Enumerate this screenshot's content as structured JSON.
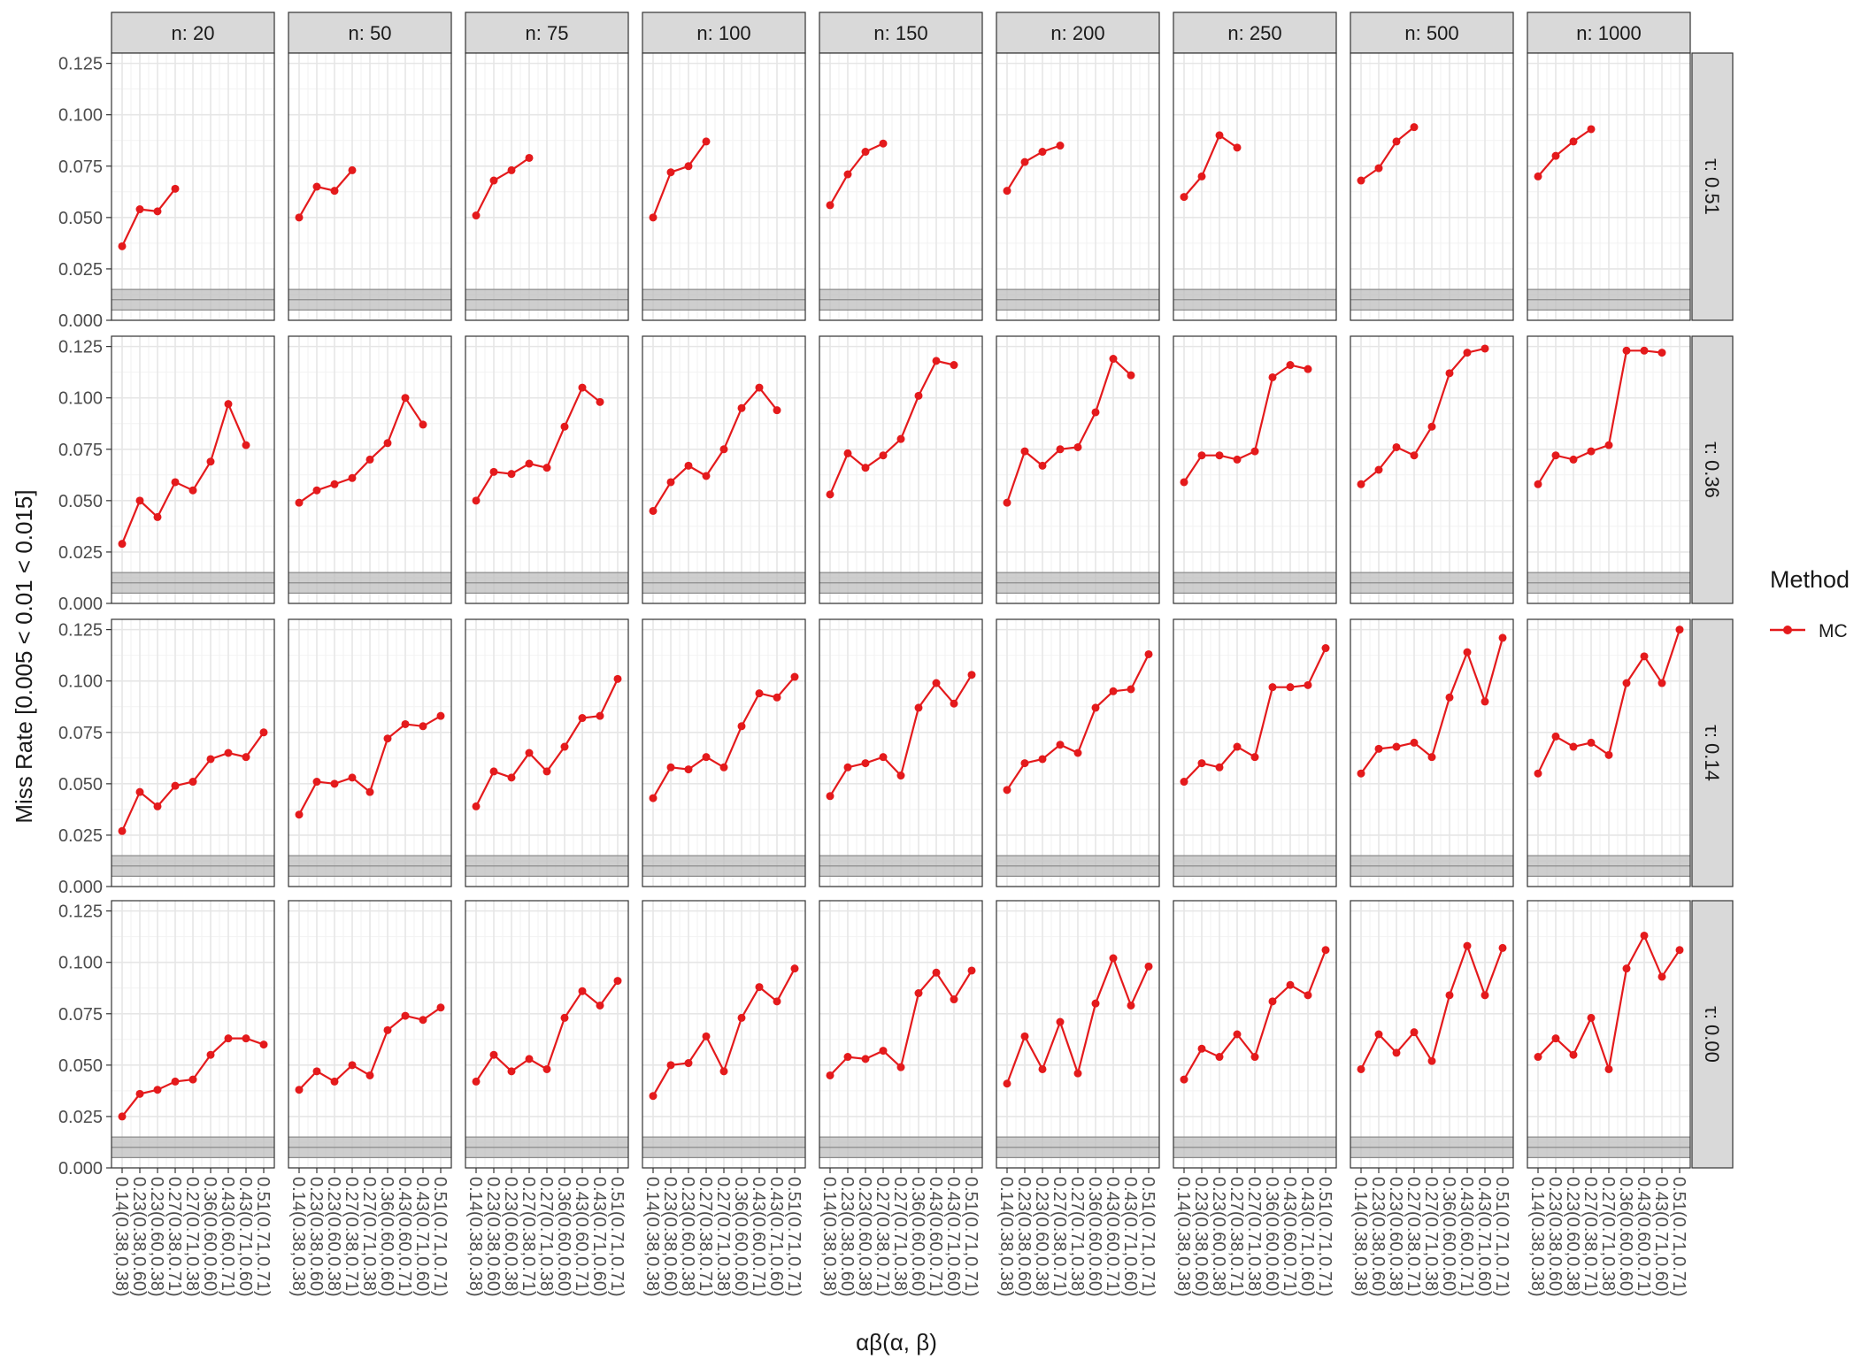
{
  "chart_data": {
    "type": "line",
    "facet_layout": {
      "cols_var_prefix": "n: ",
      "rows_var_prefix": "τ: "
    },
    "cols": [
      "n: 20",
      "n: 50",
      "n: 75",
      "n: 100",
      "n: 150",
      "n: 200",
      "n: 250",
      "n: 500",
      "n: 1000"
    ],
    "rows": [
      "τ: 0.51",
      "τ: 0.36",
      "τ: 0.14",
      "τ: 0.00"
    ],
    "x_categories": [
      "0.14(0.38,0.38)",
      "0.23(0.38,0.60)",
      "0.23(0.60,0.38)",
      "0.27(0.38,0.71)",
      "0.27(0.71,0.38)",
      "0.36(0.60,0.60)",
      "0.43(0.60,0.71)",
      "0.43(0.71,0.60)",
      "0.51(0.71,0.71)"
    ],
    "xlabel": "αβ(α, β)",
    "ylabel": "Miss Rate [0.005 < 0.01 < 0.015]",
    "ylim": [
      0,
      0.13
    ],
    "yticks": [
      "0.000",
      "0.025",
      "0.050",
      "0.075",
      "0.100",
      "0.125"
    ],
    "reference_band": {
      "low": 0.005,
      "mid": 0.01,
      "high": 0.015
    },
    "grid": true,
    "legend": {
      "title": "Method",
      "position": "right",
      "entries": [
        "MC"
      ]
    },
    "series_color": "#E41A1C",
    "band_color": "#bdbdbd",
    "panels": [
      [
        [
          0.036,
          0.054,
          0.053,
          0.064
        ],
        [
          0.05,
          0.065,
          0.063,
          0.073
        ],
        [
          0.051,
          0.068,
          0.073,
          0.079
        ],
        [
          0.05,
          0.072,
          0.075,
          0.087
        ],
        [
          0.056,
          0.071,
          0.082,
          0.086
        ],
        [
          0.063,
          0.077,
          0.082,
          0.085
        ],
        [
          0.06,
          0.07,
          0.09,
          0.084
        ],
        [
          0.068,
          0.074,
          0.087,
          0.094
        ],
        [
          0.07,
          0.08,
          0.087,
          0.093
        ]
      ],
      [
        [
          0.029,
          0.05,
          0.042,
          0.059,
          0.055,
          0.069,
          0.097,
          0.077
        ],
        [
          0.049,
          0.055,
          0.058,
          0.061,
          0.07,
          0.078,
          0.1,
          0.087
        ],
        [
          0.05,
          0.064,
          0.063,
          0.068,
          0.066,
          0.086,
          0.105,
          0.098
        ],
        [
          0.045,
          0.059,
          0.067,
          0.062,
          0.075,
          0.095,
          0.105,
          0.094
        ],
        [
          0.053,
          0.073,
          0.066,
          0.072,
          0.08,
          0.101,
          0.118,
          0.116
        ],
        [
          0.049,
          0.074,
          0.067,
          0.075,
          0.076,
          0.093,
          0.119,
          0.111
        ],
        [
          0.059,
          0.072,
          0.072,
          0.07,
          0.074,
          0.11,
          0.116,
          0.114
        ],
        [
          0.058,
          0.065,
          0.076,
          0.072,
          0.086,
          0.112,
          0.122,
          0.124
        ],
        [
          0.058,
          0.072,
          0.07,
          0.074,
          0.077,
          0.123,
          0.123,
          0.122
        ]
      ],
      [
        [
          0.027,
          0.046,
          0.039,
          0.049,
          0.051,
          0.062,
          0.065,
          0.063,
          0.075
        ],
        [
          0.035,
          0.051,
          0.05,
          0.053,
          0.046,
          0.072,
          0.079,
          0.078,
          0.083
        ],
        [
          0.039,
          0.056,
          0.053,
          0.065,
          0.056,
          0.068,
          0.082,
          0.083,
          0.101
        ],
        [
          0.043,
          0.058,
          0.057,
          0.063,
          0.058,
          0.078,
          0.094,
          0.092,
          0.102
        ],
        [
          0.044,
          0.058,
          0.06,
          0.063,
          0.054,
          0.087,
          0.099,
          0.089,
          0.103
        ],
        [
          0.047,
          0.06,
          0.062,
          0.069,
          0.065,
          0.087,
          0.095,
          0.096,
          0.113
        ],
        [
          0.051,
          0.06,
          0.058,
          0.068,
          0.063,
          0.097,
          0.097,
          0.098,
          0.116
        ],
        [
          0.055,
          0.067,
          0.068,
          0.07,
          0.063,
          0.092,
          0.114,
          0.09,
          0.121
        ],
        [
          0.055,
          0.073,
          0.068,
          0.07,
          0.064,
          0.099,
          0.112,
          0.099,
          0.125
        ]
      ],
      [
        [
          0.025,
          0.036,
          0.038,
          0.042,
          0.043,
          0.055,
          0.063,
          0.063,
          0.06
        ],
        [
          0.038,
          0.047,
          0.042,
          0.05,
          0.045,
          0.067,
          0.074,
          0.072,
          0.078
        ],
        [
          0.042,
          0.055,
          0.047,
          0.053,
          0.048,
          0.073,
          0.086,
          0.079,
          0.091
        ],
        [
          0.035,
          0.05,
          0.051,
          0.064,
          0.047,
          0.073,
          0.088,
          0.081,
          0.097
        ],
        [
          0.045,
          0.054,
          0.053,
          0.057,
          0.049,
          0.085,
          0.095,
          0.082,
          0.096
        ],
        [
          0.041,
          0.064,
          0.048,
          0.071,
          0.046,
          0.08,
          0.102,
          0.079,
          0.098
        ],
        [
          0.043,
          0.058,
          0.054,
          0.065,
          0.054,
          0.081,
          0.089,
          0.084,
          0.106
        ],
        [
          0.048,
          0.065,
          0.056,
          0.066,
          0.052,
          0.084,
          0.108,
          0.084,
          0.107
        ],
        [
          0.054,
          0.063,
          0.055,
          0.073,
          0.048,
          0.097,
          0.113,
          0.093,
          0.106
        ]
      ]
    ]
  }
}
